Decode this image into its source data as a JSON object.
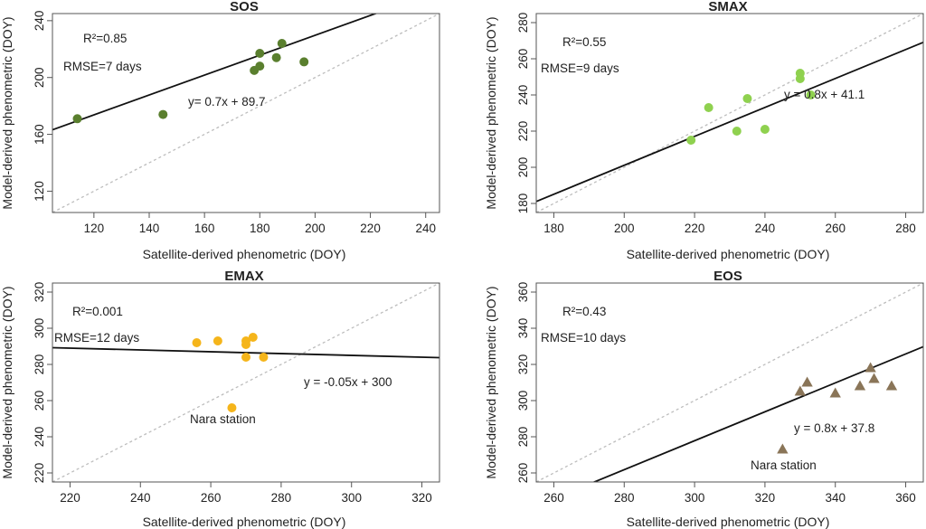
{
  "figure_title": "",
  "colors": {
    "SOS": "#5a7f2e",
    "SMAX": "#8fd14f",
    "EMAX": "#f5b51b",
    "EOS": "#8a7558",
    "fit_line": "#111111",
    "reference_line": "#bdbdbd"
  },
  "chart_data": [
    {
      "type": "scatter",
      "title": "SOS",
      "xlabel": "Satellite-derived phenometric (DOY)",
      "ylabel": "Model-derived phenometric (DOY)",
      "xlim": [
        105,
        245
      ],
      "ylim": [
        105,
        245
      ],
      "xticks": [
        120,
        140,
        160,
        180,
        200,
        220,
        240
      ],
      "yticks": [
        120,
        160,
        200,
        240
      ],
      "marker": "circle",
      "x": [
        114,
        145,
        178,
        180,
        180,
        186,
        188,
        196
      ],
      "y": [
        171,
        174,
        205,
        208,
        217,
        214,
        224,
        211
      ],
      "fit": {
        "slope": 0.7,
        "intercept": 89.7
      },
      "r2_text": "R²=0.85",
      "rmse_text": "RMSE=7 days",
      "equation_text": "y= 0.7x + 89.7",
      "extra_label": ""
    },
    {
      "type": "scatter",
      "title": "SMAX",
      "xlabel": "Satellite-derived phenometric (DOY)",
      "ylabel": "Model-derived phenometric (DOY)",
      "xlim": [
        175,
        285
      ],
      "ylim": [
        175,
        285
      ],
      "xticks": [
        180,
        200,
        220,
        240,
        260,
        280
      ],
      "yticks": [
        180,
        200,
        220,
        240,
        260,
        280
      ],
      "marker": "circle",
      "x": [
        219,
        224,
        232,
        235,
        240,
        250,
        250,
        253
      ],
      "y": [
        215,
        233,
        220,
        238,
        221,
        249,
        252,
        240
      ],
      "fit": {
        "slope": 0.8,
        "intercept": 41.1
      },
      "r2_text": "R²=0.55",
      "rmse_text": "RMSE=9 days",
      "equation_text": "y = 0.8x + 41.1",
      "extra_label": ""
    },
    {
      "type": "scatter",
      "title": "EMAX",
      "xlabel": "Satellite-derived phenometric (DOY)",
      "ylabel": "Model-derived phenometric (DOY)",
      "xlim": [
        215,
        325
      ],
      "ylim": [
        215,
        325
      ],
      "xticks": [
        220,
        240,
        260,
        280,
        300,
        320
      ],
      "yticks": [
        220,
        240,
        260,
        280,
        300,
        320
      ],
      "marker": "circle",
      "x": [
        256,
        262,
        266,
        270,
        270,
        270,
        272,
        275
      ],
      "y": [
        292,
        293,
        256,
        293,
        291,
        284,
        295,
        284
      ],
      "fit": {
        "slope": -0.05,
        "intercept": 300
      },
      "r2_text": "R²=0.001",
      "rmse_text": "RMSE=12 days",
      "equation_text": "y = -0.05x + 300",
      "extra_label": "Nara station"
    },
    {
      "type": "scatter",
      "title": "EOS",
      "xlabel": "Satellite-derived phenometric (DOY)",
      "ylabel": "Model-derived phenometric (DOY)",
      "xlim": [
        255,
        365
      ],
      "ylim": [
        255,
        365
      ],
      "xticks": [
        260,
        280,
        300,
        320,
        340,
        360
      ],
      "yticks": [
        260,
        280,
        300,
        320,
        340,
        360
      ],
      "marker": "triangle",
      "x": [
        325,
        330,
        332,
        340,
        347,
        350,
        351,
        356
      ],
      "y": [
        273,
        305,
        310,
        304,
        308,
        318,
        312,
        308
      ],
      "fit": {
        "slope": 0.8,
        "intercept": 37.8
      },
      "r2_text": "R²=0.43",
      "rmse_text": "RMSE=10 days",
      "equation_text": "y = 0.8x + 37.8",
      "extra_label": "Nara station"
    }
  ]
}
